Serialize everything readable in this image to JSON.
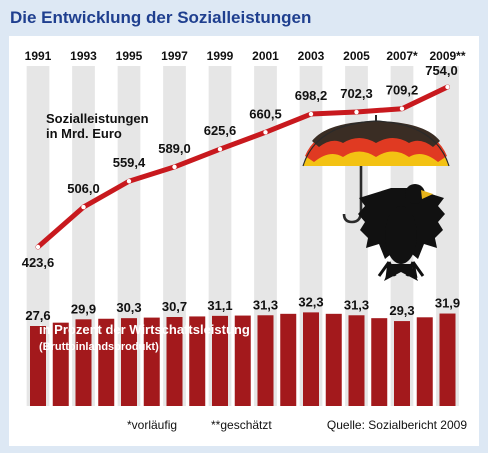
{
  "header": {
    "title": "Die Entwicklung der Sozialleistungen"
  },
  "chart_data": {
    "type": "line",
    "title": "Die Entwicklung der Sozialleistungen",
    "categories": [
      "1991",
      "1993",
      "1995",
      "1997",
      "1999",
      "2001",
      "2003",
      "2005",
      "2007*",
      "2009**"
    ],
    "series": [
      {
        "name": "Sozialleistungen in Mrd. Euro",
        "label_lines": [
          "Sozialleistungen",
          "in Mrd. Euro"
        ],
        "values": [
          423.6,
          506.0,
          559.4,
          589.0,
          625.6,
          660.5,
          698.2,
          702.3,
          709.2,
          754.0
        ],
        "value_labels": [
          "423,6",
          "506,0",
          "559,4",
          "589,0",
          "625,6",
          "660,5",
          "698,2",
          "702,3",
          "709,2",
          "754,0"
        ],
        "color": "#c8191e"
      },
      {
        "name": "in Prozent der Wirtschaftsleistung (Bruttoinlandsprodukt)",
        "label_lines": [
          "in Prozent der Wirtschaftsleistung",
          "(Bruttoinlandsprodukt)"
        ],
        "values": [
          27.6,
          29.9,
          30.3,
          30.7,
          31.1,
          31.3,
          32.3,
          31.3,
          29.3,
          31.9
        ],
        "value_labels": [
          "27,6",
          "29,9",
          "30,3",
          "30,7",
          "31,1",
          "31,3",
          "32,3",
          "31,3",
          "29,3",
          "31,9"
        ],
        "color": "#a3191c"
      }
    ],
    "footnotes": [
      "*vorläufig",
      "**geschätzt"
    ],
    "source": "Quelle: Sozialbericht 2009"
  }
}
